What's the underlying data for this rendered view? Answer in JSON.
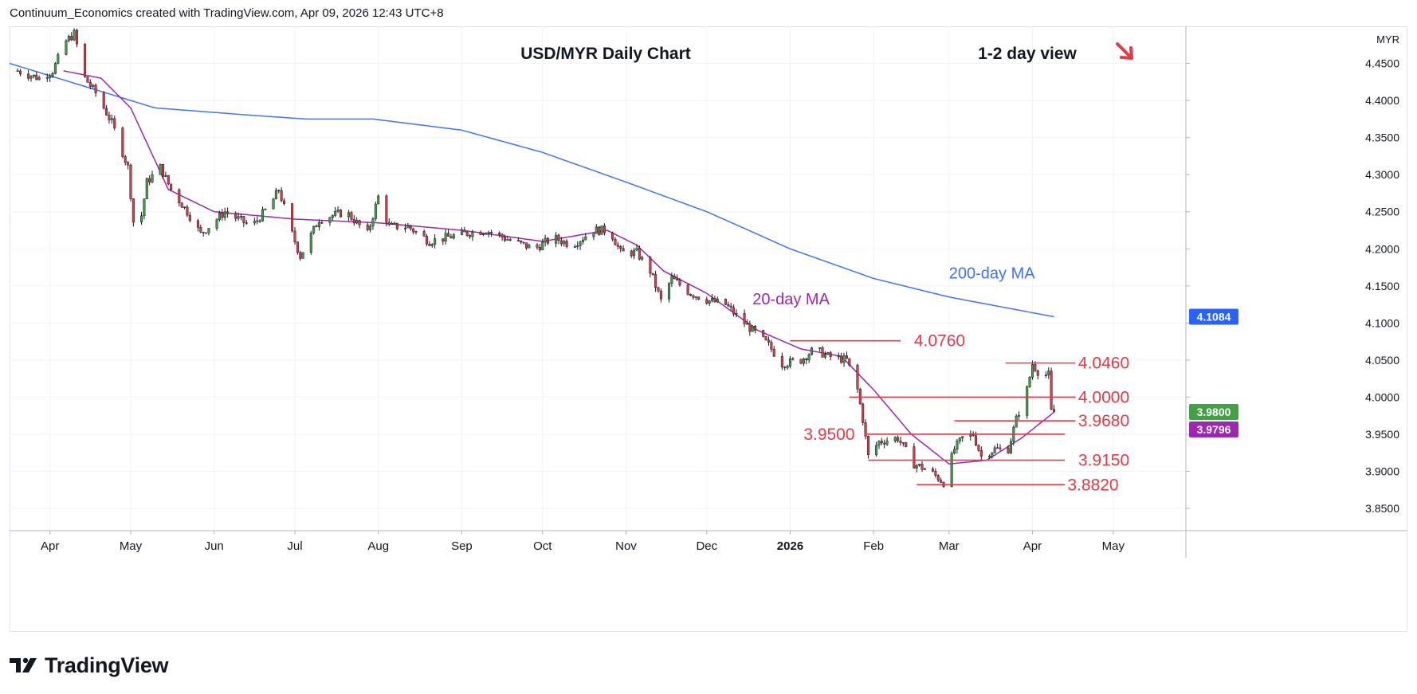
{
  "header": {
    "source_text": "Continuum_Economics created with TradingView.com, Apr 09, 2026 12:43 UTC+8"
  },
  "brand": {
    "name": "TradingView",
    "logo_icon": "tradingview-logo-icon"
  },
  "chart_data": {
    "type": "candlestick",
    "title": "USD/MYR Daily Chart",
    "subtitle": "1-2 day view",
    "bias_icon": "arrow-down-right-icon",
    "currency_label": "MYR",
    "ylim": [
      3.82,
      4.5
    ],
    "y_ticks": [
      "4.4500",
      "4.4000",
      "4.3500",
      "4.3000",
      "4.2500",
      "4.2000",
      "4.1500",
      "4.1000",
      "4.0500",
      "4.0000",
      "3.9500",
      "3.9000",
      "3.8500"
    ],
    "x_ticks": [
      "Apr",
      "May",
      "Jun",
      "Jul",
      "Aug",
      "Sep",
      "Oct",
      "Nov",
      "Dec",
      "2026",
      "Feb",
      "Mar",
      "Apr",
      "May"
    ],
    "x_tick_dates": [
      "2025-04-01",
      "2025-05-01",
      "2025-06-01",
      "2025-07-01",
      "2025-08-01",
      "2025-09-01",
      "2025-10-01",
      "2025-11-01",
      "2025-12-01",
      "2026-01-01",
      "2026-02-01",
      "2026-03-01",
      "2026-04-01",
      "2026-05-01"
    ],
    "x_range": [
      "2025-03-17",
      "2026-05-28"
    ],
    "ohlc_anchors": [
      {
        "date": "2025-03-20",
        "close": 4.44
      },
      {
        "date": "2025-03-28",
        "close": 4.43
      },
      {
        "date": "2025-04-02",
        "close": 4.44
      },
      {
        "date": "2025-04-07",
        "close": 4.48
      },
      {
        "date": "2025-04-10",
        "close": 4.49
      },
      {
        "date": "2025-04-14",
        "close": 4.43
      },
      {
        "date": "2025-04-18",
        "close": 4.41
      },
      {
        "date": "2025-04-24",
        "close": 4.37
      },
      {
        "date": "2025-04-30",
        "close": 4.31
      },
      {
        "date": "2025-05-03",
        "close": 4.2
      },
      {
        "date": "2025-05-07",
        "close": 4.29
      },
      {
        "date": "2025-05-12",
        "close": 4.31
      },
      {
        "date": "2025-05-16",
        "close": 4.28
      },
      {
        "date": "2025-05-22",
        "close": 4.25
      },
      {
        "date": "2025-05-27",
        "close": 4.22
      },
      {
        "date": "2025-06-05",
        "close": 4.25
      },
      {
        "date": "2025-06-15",
        "close": 4.23
      },
      {
        "date": "2025-06-22",
        "close": 4.26
      },
      {
        "date": "2025-06-25",
        "close": 4.28
      },
      {
        "date": "2025-06-30",
        "close": 4.22
      },
      {
        "date": "2025-07-03",
        "close": 4.19
      },
      {
        "date": "2025-07-10",
        "close": 4.24
      },
      {
        "date": "2025-07-20",
        "close": 4.25
      },
      {
        "date": "2025-07-28",
        "close": 4.22
      },
      {
        "date": "2025-08-01",
        "close": 4.27
      },
      {
        "date": "2025-08-05",
        "close": 4.23
      },
      {
        "date": "2025-08-12",
        "close": 4.23
      },
      {
        "date": "2025-08-20",
        "close": 4.21
      },
      {
        "date": "2025-09-01",
        "close": 4.22
      },
      {
        "date": "2025-09-10",
        "close": 4.225
      },
      {
        "date": "2025-09-20",
        "close": 4.21
      },
      {
        "date": "2025-09-28",
        "close": 4.2
      },
      {
        "date": "2025-10-05",
        "close": 4.215
      },
      {
        "date": "2025-10-12",
        "close": 4.205
      },
      {
        "date": "2025-10-20",
        "close": 4.225
      },
      {
        "date": "2025-10-26",
        "close": 4.225
      },
      {
        "date": "2025-10-30",
        "close": 4.195
      },
      {
        "date": "2025-11-05",
        "close": 4.195
      },
      {
        "date": "2025-11-10",
        "close": 4.17
      },
      {
        "date": "2025-11-14",
        "close": 4.13
      },
      {
        "date": "2025-11-18",
        "close": 4.16
      },
      {
        "date": "2025-11-25",
        "close": 4.14
      },
      {
        "date": "2025-12-02",
        "close": 4.13
      },
      {
        "date": "2025-12-08",
        "close": 4.125
      },
      {
        "date": "2025-12-12",
        "close": 4.11
      },
      {
        "date": "2025-12-18",
        "close": 4.09
      },
      {
        "date": "2025-12-24",
        "close": 4.07
      },
      {
        "date": "2025-12-29",
        "close": 4.045
      },
      {
        "date": "2026-01-05",
        "close": 4.05
      },
      {
        "date": "2026-01-10",
        "close": 4.065
      },
      {
        "date": "2026-01-15",
        "close": 4.055
      },
      {
        "date": "2026-01-22",
        "close": 4.05
      },
      {
        "date": "2026-01-26",
        "close": 4.01
      },
      {
        "date": "2026-01-28",
        "close": 3.97
      },
      {
        "date": "2026-01-30",
        "close": 3.92
      },
      {
        "date": "2026-02-03",
        "close": 3.94
      },
      {
        "date": "2026-02-10",
        "close": 3.945
      },
      {
        "date": "2026-02-16",
        "close": 3.91
      },
      {
        "date": "2026-02-22",
        "close": 3.9
      },
      {
        "date": "2026-02-27",
        "close": 3.885
      },
      {
        "date": "2026-03-03",
        "close": 3.93
      },
      {
        "date": "2026-03-06",
        "close": 3.945
      },
      {
        "date": "2026-03-10",
        "close": 3.95
      },
      {
        "date": "2026-03-13",
        "close": 3.92
      },
      {
        "date": "2026-03-18",
        "close": 3.93
      },
      {
        "date": "2026-03-23",
        "close": 3.93
      },
      {
        "date": "2026-03-26",
        "close": 3.97
      },
      {
        "date": "2026-03-30",
        "close": 4.01
      },
      {
        "date": "2026-04-01",
        "close": 4.045
      },
      {
        "date": "2026-04-04",
        "close": 4.03
      },
      {
        "date": "2026-04-07",
        "close": 4.03
      },
      {
        "date": "2026-04-08",
        "close": 3.98
      },
      {
        "date": "2026-04-09",
        "close": 3.98
      }
    ],
    "ma200_anchors": [
      {
        "date": "2025-03-17",
        "value": 4.45
      },
      {
        "date": "2025-05-10",
        "value": 4.39
      },
      {
        "date": "2025-06-15",
        "value": 4.38
      },
      {
        "date": "2025-07-05",
        "value": 4.375
      },
      {
        "date": "2025-07-30",
        "value": 4.375
      },
      {
        "date": "2025-09-01",
        "value": 4.36
      },
      {
        "date": "2025-10-01",
        "value": 4.33
      },
      {
        "date": "2025-11-01",
        "value": 4.29
      },
      {
        "date": "2025-12-01",
        "value": 4.25
      },
      {
        "date": "2026-01-01",
        "value": 4.2
      },
      {
        "date": "2026-02-01",
        "value": 4.16
      },
      {
        "date": "2026-03-01",
        "value": 4.135
      },
      {
        "date": "2026-04-09",
        "value": 4.1084
      }
    ],
    "ma20_anchors": [
      {
        "date": "2025-04-06",
        "value": 4.44
      },
      {
        "date": "2025-04-20",
        "value": 4.43
      },
      {
        "date": "2025-05-01",
        "value": 4.39
      },
      {
        "date": "2025-05-15",
        "value": 4.28
      },
      {
        "date": "2025-06-01",
        "value": 4.25
      },
      {
        "date": "2025-07-01",
        "value": 4.24
      },
      {
        "date": "2025-08-01",
        "value": 4.235
      },
      {
        "date": "2025-09-01",
        "value": 4.225
      },
      {
        "date": "2025-10-01",
        "value": 4.21
      },
      {
        "date": "2025-10-25",
        "value": 4.225
      },
      {
        "date": "2025-11-05",
        "value": 4.205
      },
      {
        "date": "2025-11-15",
        "value": 4.17
      },
      {
        "date": "2025-12-01",
        "value": 4.14
      },
      {
        "date": "2025-12-20",
        "value": 4.09
      },
      {
        "date": "2026-01-05",
        "value": 4.065
      },
      {
        "date": "2026-01-20",
        "value": 4.055
      },
      {
        "date": "2026-02-01",
        "value": 4.01
      },
      {
        "date": "2026-02-15",
        "value": 3.95
      },
      {
        "date": "2026-03-01",
        "value": 3.91
      },
      {
        "date": "2026-03-15",
        "value": 3.915
      },
      {
        "date": "2026-03-28",
        "value": 3.945
      },
      {
        "date": "2026-04-09",
        "value": 3.9796
      }
    ],
    "ma_labels": [
      {
        "name": "200-day MA",
        "color": "#3f73ef",
        "anchor_date": "2026-03-01",
        "anchor_value": 4.16
      },
      {
        "name": "20-day MA",
        "color": "#9c27b0",
        "anchor_date": "2025-12-18",
        "anchor_value": 4.125
      }
    ],
    "levels": [
      {
        "label": "4.0760",
        "value": 4.076,
        "from": "2026-01-01",
        "to": "2026-02-11",
        "label_date": "2026-02-16",
        "label_side": "right"
      },
      {
        "label": "4.0460",
        "value": 4.046,
        "from": "2026-03-22",
        "to": "2026-04-17",
        "label_date": "2026-04-18",
        "label_side": "right"
      },
      {
        "label": "4.0000",
        "value": 4.0,
        "from": "2026-01-23",
        "to": "2026-04-17",
        "label_date": "2026-04-18",
        "label_side": "right"
      },
      {
        "label": "3.9680",
        "value": 3.968,
        "from": "2026-03-03",
        "to": "2026-04-17",
        "label_date": "2026-04-18",
        "label_side": "right"
      },
      {
        "label": "3.9500",
        "value": 3.95,
        "from": "2026-01-29",
        "to": "2026-04-13",
        "label_date": "2026-01-25",
        "label_side": "left"
      },
      {
        "label": "3.9150",
        "value": 3.915,
        "from": "2026-01-30",
        "to": "2026-04-13",
        "label_date": "2026-04-18",
        "label_side": "right"
      },
      {
        "label": "3.8820",
        "value": 3.882,
        "from": "2026-02-17",
        "to": "2026-04-13",
        "label_date": "2026-04-14",
        "label_side": "right"
      }
    ],
    "price_badges": [
      {
        "label": "4.1084",
        "value": 4.1084,
        "color": "#2962ff"
      },
      {
        "label": "3.9800",
        "value": 3.98,
        "color": "#43a047"
      },
      {
        "label": "3.9796",
        "value": 3.9796,
        "color": "#9c27b0"
      }
    ],
    "colors": {
      "up": "#43a047",
      "down": "#e53945",
      "ma200": "#3f73ef",
      "ma20": "#9c27b0",
      "levels": "#e53945",
      "grid": "#f0f3fa",
      "axis_text": "#131722",
      "bias_arrow": "#e53945"
    },
    "grid": true
  }
}
